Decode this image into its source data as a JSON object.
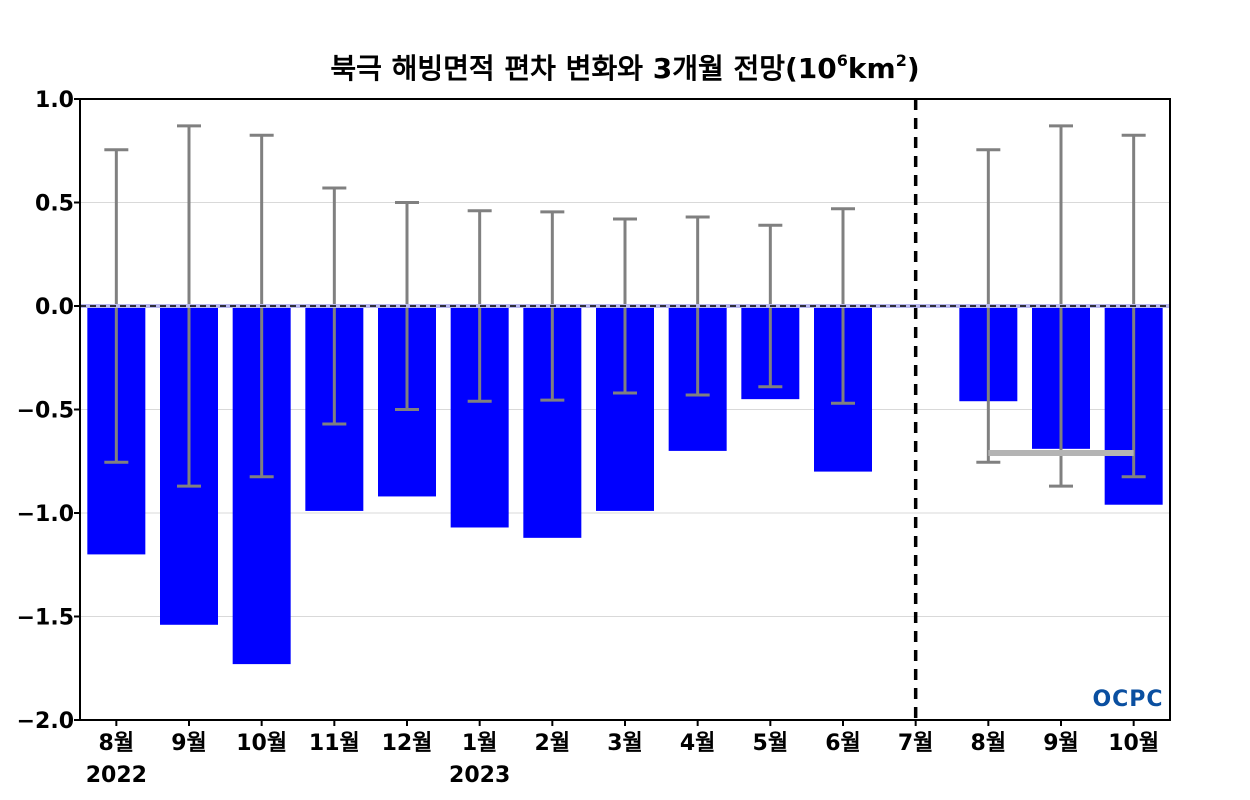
{
  "chart_data": {
    "type": "bar",
    "title_main": "북극 해빙면적 편차 변화와 3개월 전망(10",
    "title_exp1": "6",
    "title_unit": "km",
    "title_exp2": "2",
    "title_close": ")",
    "xlabel": "",
    "ylabel": "",
    "ylim": [
      -2.0,
      1.0
    ],
    "yticks": [
      "1.0",
      "0.5",
      "0.0",
      "−0.5",
      "−1.0",
      "−1.5",
      "−2.0"
    ],
    "ytick_values": [
      1.0,
      0.5,
      0.0,
      -0.5,
      -1.0,
      -1.5,
      -2.0
    ],
    "categories": [
      "8월",
      "9월",
      "10월",
      "11월",
      "12월",
      "1월",
      "2월",
      "3월",
      "4월",
      "5월",
      "6월",
      "7월",
      "8월",
      "9월",
      "10월"
    ],
    "year_labels": [
      {
        "index": 0,
        "text": "2022"
      },
      {
        "index": 5,
        "text": "2023"
      }
    ],
    "values": [
      -1.2,
      -1.54,
      -1.73,
      -0.99,
      -0.92,
      -1.07,
      -1.12,
      -0.99,
      -0.7,
      -0.45,
      -0.8,
      null,
      -0.46,
      -0.69,
      -0.96
    ],
    "error_bars": [
      0.755,
      0.87,
      0.825,
      0.57,
      0.5,
      0.46,
      0.455,
      0.42,
      0.43,
      0.39,
      0.47,
      null,
      0.755,
      0.87,
      0.825
    ],
    "forecast_divider_index": 11,
    "forecast_mean": {
      "value": -0.71,
      "from_index": 12,
      "to_index": 14
    },
    "grid": true,
    "colors": {
      "bar": "#0000ff",
      "error_bar": "#808080",
      "forecast_mean": "#b4b4b4",
      "zero_line": "#000000",
      "grid": "#d9d9d9"
    }
  },
  "logo": {
    "text": "OCPC",
    "colors": [
      "#0a4fa0",
      "#1e90d8"
    ]
  }
}
